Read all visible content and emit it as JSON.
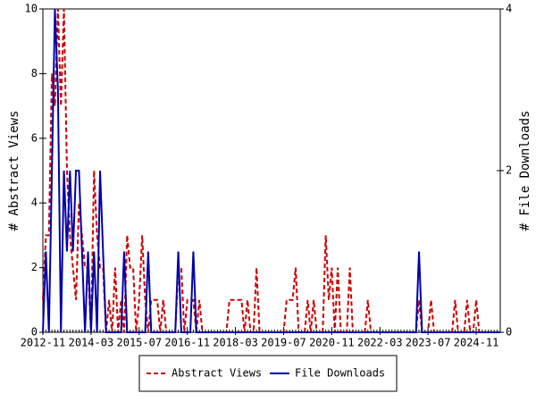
{
  "chart_data": {
    "type": "line",
    "ylabel": "# Abstract Views",
    "y2label": "# File Downloads",
    "categories": [
      "2012-11",
      null,
      null,
      null,
      null,
      null,
      null,
      null,
      null,
      null,
      null,
      null,
      null,
      null,
      null,
      null,
      "2014-03",
      null,
      null,
      null,
      null,
      null,
      null,
      null,
      null,
      null,
      null,
      null,
      null,
      null,
      null,
      null,
      "2015-07",
      null,
      null,
      null,
      null,
      null,
      null,
      null,
      null,
      null,
      null,
      null,
      null,
      null,
      null,
      null,
      "2016-11",
      null,
      null,
      null,
      null,
      null,
      null,
      null,
      null,
      null,
      null,
      null,
      null,
      null,
      null,
      null,
      "2018-03",
      null,
      null,
      null,
      null,
      null,
      null,
      null,
      null,
      null,
      null,
      null,
      null,
      null,
      null,
      null,
      "2019-07",
      null,
      null,
      null,
      null,
      null,
      null,
      null,
      null,
      null,
      null,
      null,
      null,
      null,
      null,
      null,
      "2020-11",
      null,
      null,
      null,
      null,
      null,
      null,
      null,
      null,
      null,
      null,
      null,
      null,
      null,
      null,
      null,
      "2022-03",
      null,
      null,
      null,
      null,
      null,
      null,
      null,
      null,
      null,
      null,
      null,
      null,
      null,
      null,
      null,
      "2023-07",
      null,
      null,
      null,
      null,
      null,
      null,
      null,
      null,
      null,
      null,
      null,
      null,
      null,
      null,
      null,
      "2024-11",
      null,
      null,
      null,
      null,
      null,
      null,
      null,
      null
    ],
    "series": [
      {
        "name": "Abstract Views",
        "color": "#cc0000",
        "dashed": true,
        "values": [
          1,
          3,
          3,
          8,
          7,
          10,
          7,
          10,
          5,
          3,
          2,
          1,
          4,
          3,
          2,
          2,
          0,
          5,
          3,
          2,
          2,
          0,
          1,
          0,
          2,
          0,
          1,
          0,
          3,
          2,
          2,
          0,
          1,
          3,
          1,
          0,
          1,
          1,
          1,
          0,
          1,
          0,
          0,
          0,
          0,
          2,
          2,
          0,
          1,
          1,
          1,
          0,
          1,
          0,
          0,
          0,
          0,
          0,
          0,
          0,
          0,
          0,
          1,
          1,
          1,
          1,
          1,
          0,
          1,
          0,
          0,
          2,
          0,
          0,
          0,
          0,
          0,
          0,
          0,
          0,
          0,
          1,
          1,
          1,
          2,
          0,
          0,
          0,
          1,
          0,
          1,
          0,
          0,
          0,
          3,
          1,
          2,
          0,
          2,
          0,
          0,
          0,
          2,
          0,
          0,
          0,
          0,
          0,
          1,
          0,
          0,
          0,
          0,
          0,
          0,
          0,
          0,
          0,
          0,
          0,
          0,
          0,
          0,
          0,
          0,
          1,
          0,
          0,
          0,
          1,
          0,
          0,
          0,
          0,
          0,
          0,
          0,
          1,
          0,
          0,
          0,
          1,
          0,
          0,
          1,
          0,
          0,
          0,
          0,
          0,
          0,
          0,
          0
        ]
      },
      {
        "name": "File Downloads",
        "color": "#0000aa",
        "dashed": false,
        "axis": "y2",
        "values": [
          0,
          1,
          0,
          2,
          4,
          3,
          0,
          2,
          1,
          2,
          1,
          2,
          2,
          1,
          0,
          1,
          0,
          1,
          0,
          2,
          1,
          0,
          0,
          0,
          0,
          0,
          0,
          1,
          0,
          0,
          0,
          0,
          0,
          0,
          0,
          1,
          0,
          0,
          0,
          0,
          0,
          0,
          0,
          0,
          0,
          1,
          0,
          0,
          0,
          0,
          1,
          0,
          0,
          0,
          0,
          0,
          0,
          0,
          0,
          0,
          0,
          0,
          0,
          0,
          0,
          0,
          0,
          0,
          0,
          0,
          0,
          0,
          0,
          0,
          0,
          0,
          0,
          0,
          0,
          0,
          0,
          0,
          0,
          0,
          0,
          0,
          0,
          0,
          0,
          0,
          0,
          0,
          0,
          0,
          0,
          0,
          0,
          0,
          0,
          0,
          0,
          0,
          0,
          0,
          0,
          0,
          0,
          0,
          0,
          0,
          0,
          0,
          0,
          0,
          0,
          0,
          0,
          0,
          0,
          0,
          0,
          0,
          0,
          0,
          0,
          1,
          0,
          0,
          0,
          0,
          0,
          0,
          0,
          0,
          0,
          0,
          0,
          0,
          0,
          0,
          0,
          0,
          0,
          0,
          0,
          0,
          0,
          0,
          0,
          0,
          0,
          0,
          0
        ]
      }
    ],
    "ylim": [
      0,
      10
    ],
    "yticks": [
      0,
      2,
      4,
      6,
      8,
      10
    ],
    "y2lim": [
      0,
      4
    ],
    "y2ticks": [
      0,
      2,
      4
    ],
    "legend": "bottom"
  }
}
